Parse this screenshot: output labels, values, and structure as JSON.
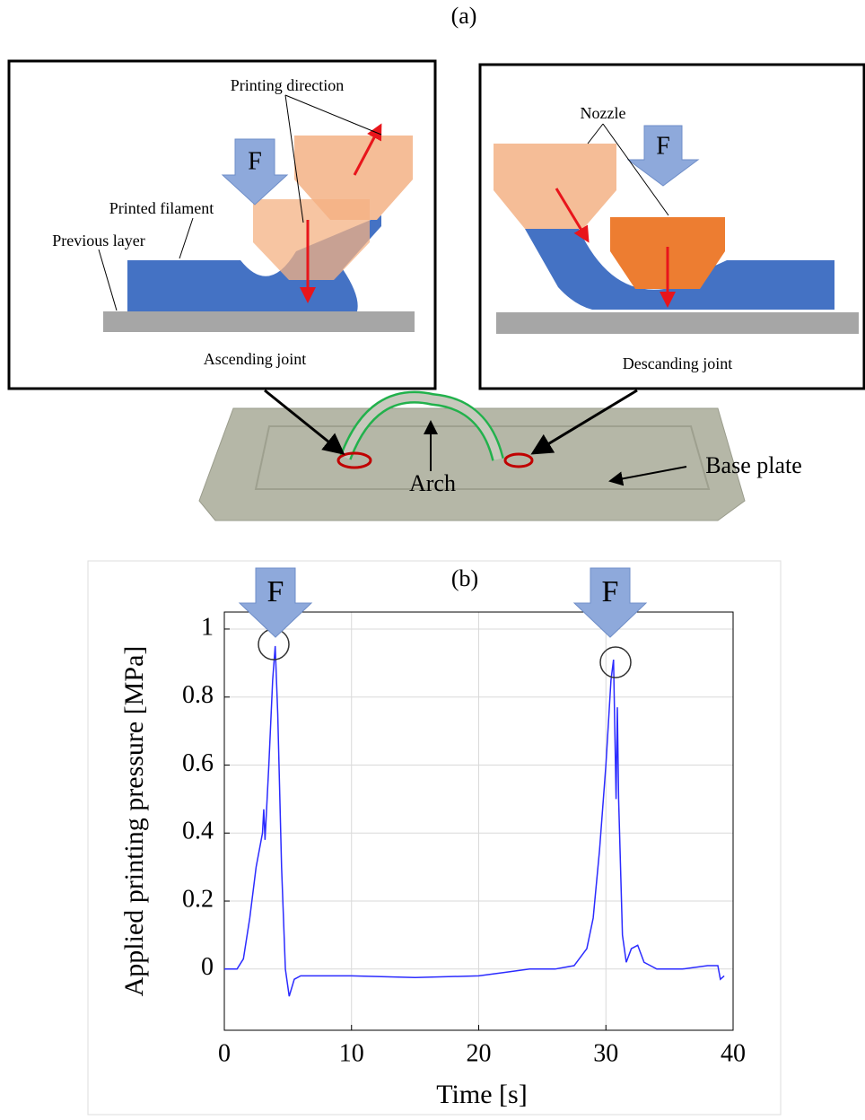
{
  "figure_a": {
    "label": "(a)",
    "ascending": {
      "printing_direction": "Printing direction",
      "printed_filament": "Printed filament",
      "previous_layer": "Previous layer",
      "force": "F",
      "caption": "Ascending joint"
    },
    "descending": {
      "nozzle": "Nozzle",
      "force": "F",
      "caption": "Descanding joint"
    },
    "photo": {
      "arch": "Arch",
      "base_plate": "Base plate"
    }
  },
  "chart_data": {
    "type": "line",
    "title": "(b)",
    "x_label": "Time [s]",
    "y_label": "Applied printing pressure [MPa]",
    "annotations": [
      "F",
      "F"
    ],
    "x": [
      0,
      1,
      1.5,
      2,
      2.5,
      3,
      3.1,
      3.2,
      3.5,
      3.8,
      4,
      4.2,
      4.5,
      4.8,
      5.1,
      5.5,
      6,
      10,
      15,
      20,
      22,
      24,
      26,
      27.5,
      28.5,
      29,
      29.5,
      30,
      30.4,
      30.6,
      30.8,
      30.9,
      31,
      31.3,
      31.6,
      32,
      32.5,
      33,
      34,
      36,
      38,
      38.8,
      39,
      39.3
    ],
    "series": [
      {
        "color": "#2b2bff",
        "values": [
          0,
          0,
          0.03,
          0.15,
          0.3,
          0.4,
          0.47,
          0.38,
          0.6,
          0.85,
          0.95,
          0.75,
          0.3,
          0,
          -0.08,
          -0.03,
          -0.02,
          -0.02,
          -0.025,
          -0.02,
          -0.01,
          0,
          0,
          0.01,
          0.06,
          0.15,
          0.35,
          0.6,
          0.85,
          0.91,
          0.5,
          0.77,
          0.5,
          0.1,
          0.02,
          0.06,
          0.07,
          0.02,
          0,
          0,
          0.01,
          0.01,
          -0.03,
          -0.02
        ]
      }
    ],
    "xlim": [
      0,
      40
    ],
    "ylim": [
      -0.18,
      1.05
    ],
    "xticks": [
      0,
      10,
      20,
      30,
      40
    ],
    "yticks": [
      0,
      0.2,
      0.4,
      0.6,
      0.8,
      1
    ],
    "grid": true
  }
}
